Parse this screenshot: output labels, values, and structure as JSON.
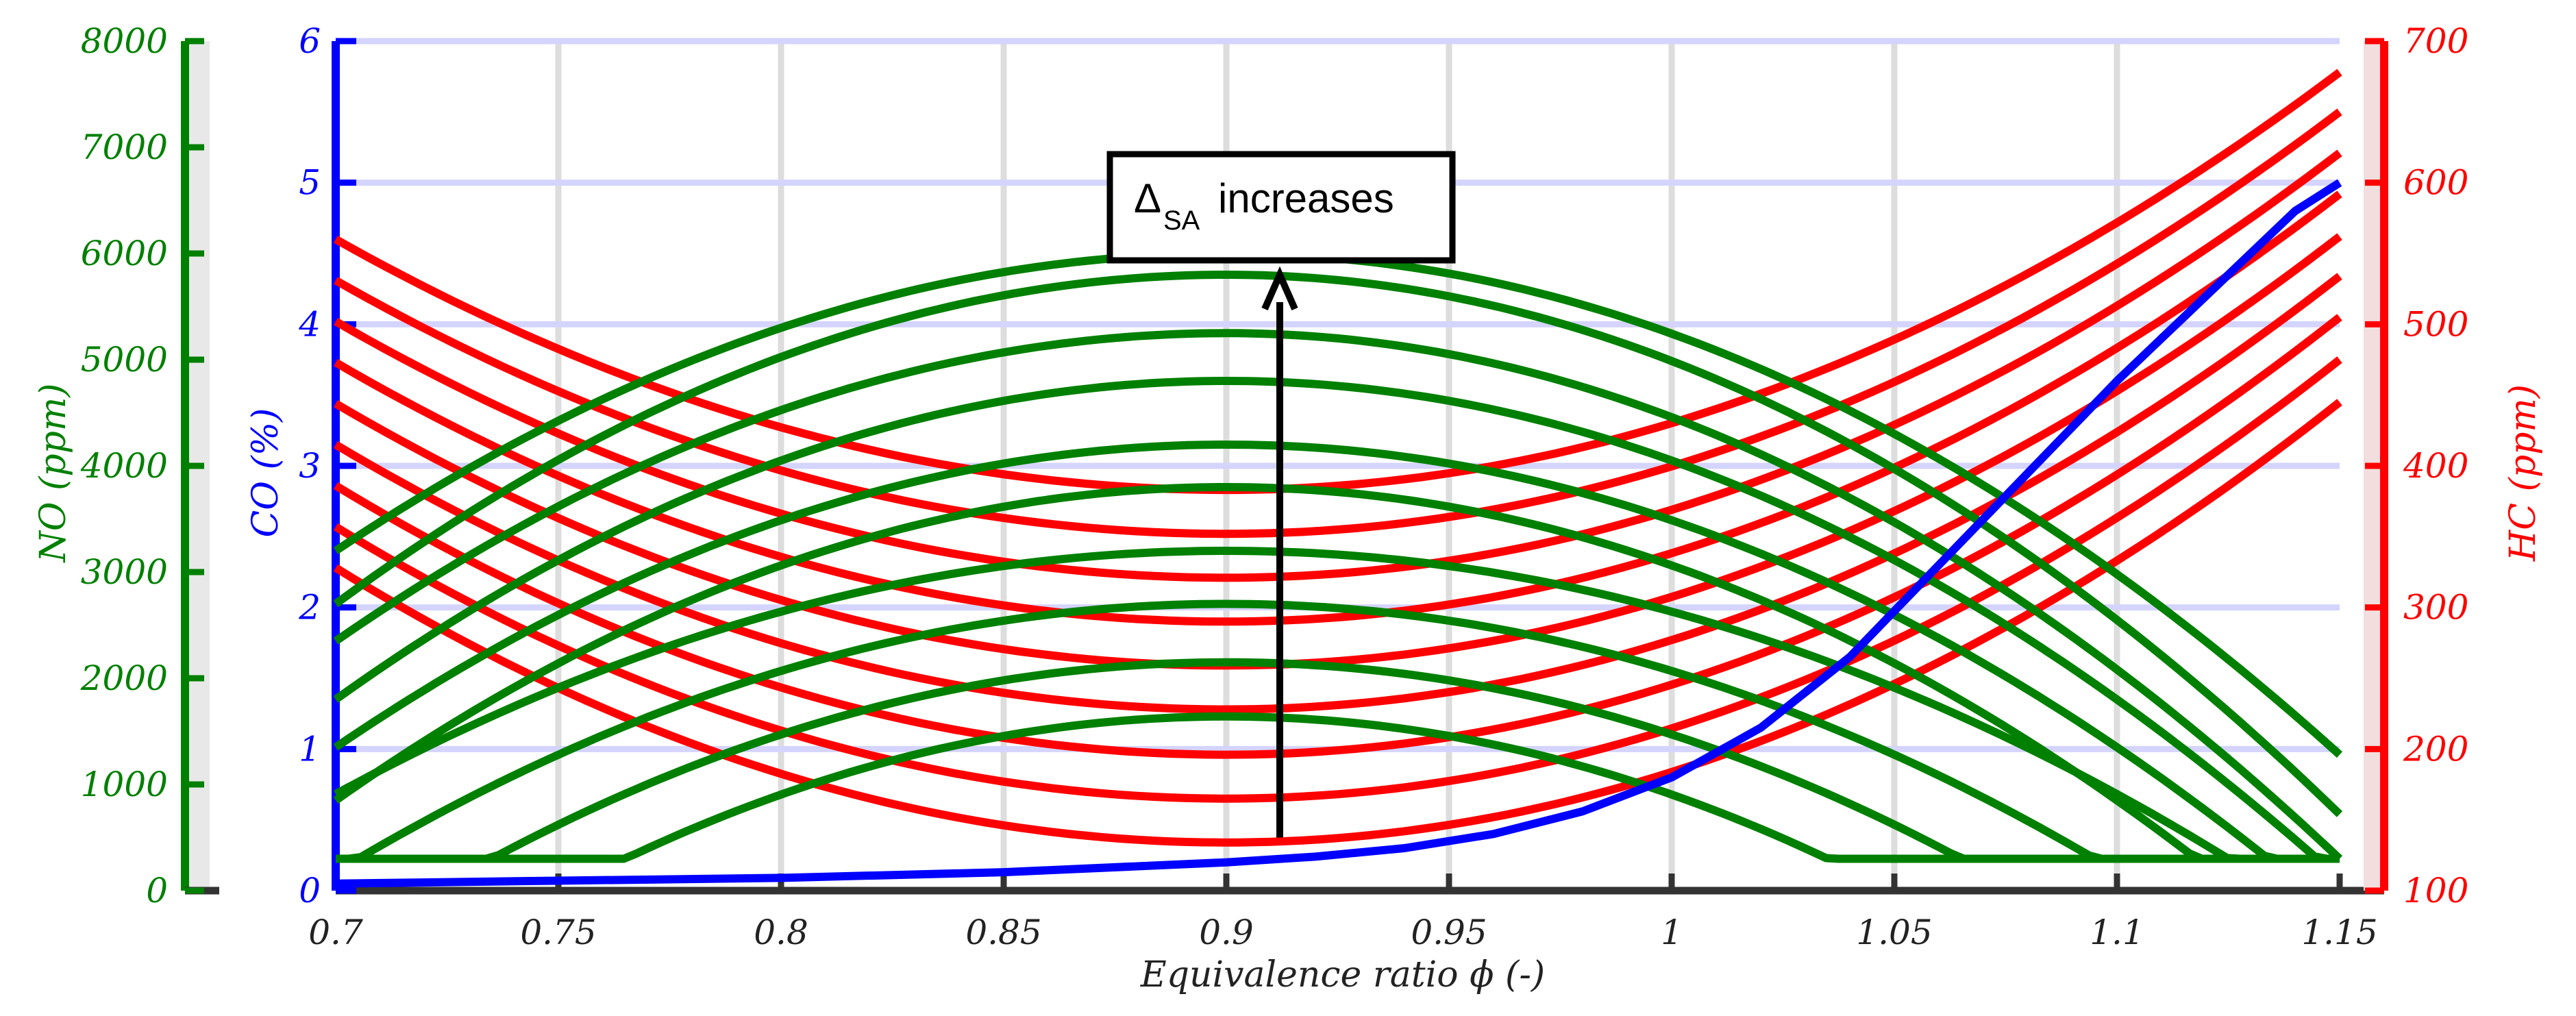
{
  "chart_data": {
    "type": "line",
    "xlabel": "Equivalence ratio  ϕ (-)",
    "xlim": [
      0.7,
      1.15
    ],
    "xticks": [
      "0.7",
      "0.75",
      "0.8",
      "0.85",
      "0.9",
      "0.95",
      "1",
      "1.05",
      "1.1",
      "1.15"
    ],
    "axes": {
      "no": {
        "label": "NO (ppm)",
        "ylim": [
          0,
          8000
        ],
        "ticks": [
          "0",
          "1000",
          "2000",
          "3000",
          "4000",
          "5000",
          "6000",
          "7000",
          "8000"
        ],
        "color": "#008000"
      },
      "co": {
        "label": "CO (%)",
        "ylim": [
          0,
          6
        ],
        "ticks": [
          "0",
          "1",
          "2",
          "3",
          "4",
          "5",
          "6"
        ],
        "color": "#0000ff"
      },
      "hc": {
        "label": "HC (ppm)",
        "ylim": [
          100,
          700
        ],
        "ticks": [
          "100",
          "200",
          "300",
          "400",
          "500",
          "600",
          "700"
        ],
        "color": "#ff0000"
      }
    },
    "series": {
      "co": {
        "name": "CO",
        "axis": "co",
        "x": [
          0.7,
          0.75,
          0.8,
          0.85,
          0.9,
          0.92,
          0.94,
          0.96,
          0.98,
          1.0,
          1.02,
          1.04,
          1.06,
          1.08,
          1.1,
          1.12,
          1.14,
          1.15
        ],
        "y": [
          0.05,
          0.07,
          0.09,
          0.13,
          0.2,
          0.24,
          0.3,
          0.4,
          0.56,
          0.8,
          1.15,
          1.65,
          2.3,
          2.95,
          3.6,
          4.2,
          4.8,
          5.0
        ]
      },
      "no": {
        "name": "NO",
        "axis": "no",
        "floor": 300,
        "peak_x": 0.9,
        "peaks": [
          1640,
          2150,
          2700,
          3200,
          3800,
          4200,
          4800,
          5250,
          5800,
          6000
        ],
        "left_edge": [
          300,
          300,
          300,
          300,
          850,
          1350,
          1800,
          2350,
          2700,
          3200
        ],
        "right_edge": [
          300,
          300,
          300,
          300,
          300,
          300,
          300,
          300,
          720,
          1280
        ]
      },
      "hc": {
        "name": "HC",
        "axis": "hc",
        "min_x": 0.9,
        "left_edge": [
          328,
          357,
          386,
          415,
          444,
          473,
          502,
          531,
          560
        ],
        "minima": [
          134,
          165,
          196,
          228,
          259,
          290,
          321,
          352,
          383
        ],
        "right_edge": [
          445,
          475,
          505,
          534,
          562,
          592,
          621,
          650,
          678
        ]
      }
    },
    "annotation": {
      "label": "Δ",
      "subscript": "SA",
      "suffix": "increases",
      "arrow_x": 0.912,
      "arrow_from_y_no": 500,
      "arrow_to_y_no": 5800
    }
  }
}
